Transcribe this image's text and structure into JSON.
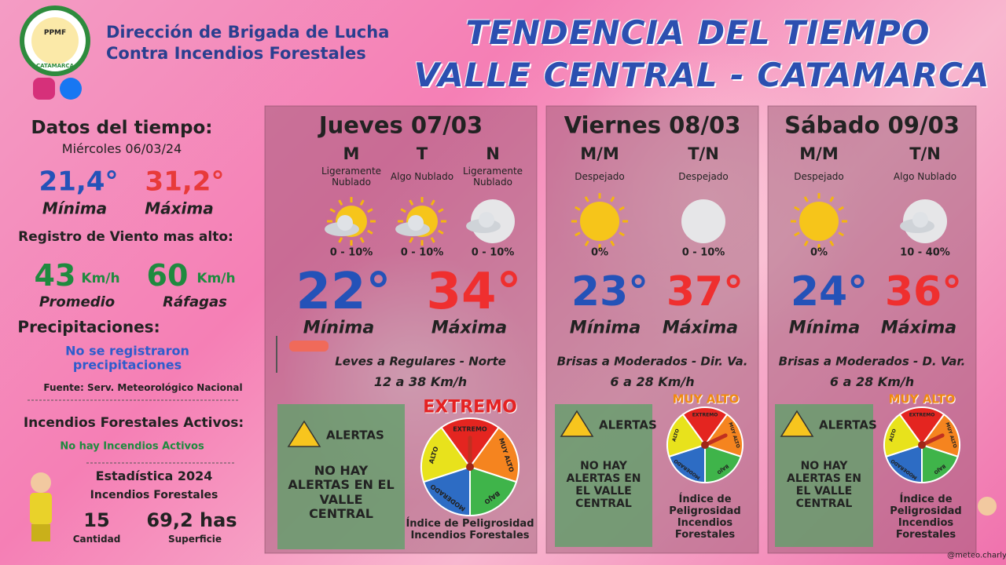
{
  "header": {
    "org_line1": "Dirección de Brigada de Lucha",
    "org_line2": "Contra Incendios Forestales",
    "logo_text": "PPMF",
    "logo_place": "CATAMARCA",
    "title_line1": "TENDENCIA DEL TIEMPO",
    "title_line2": "VALLE CENTRAL - CATAMARCA"
  },
  "summary": {
    "heading": "Datos del tiempo:",
    "date": "Miércoles 06/03/24",
    "min": "21,4°",
    "min_label": "Mínima",
    "max": "31,2°",
    "max_label": "Máxima",
    "wind_heading": "Registro de Viento mas alto:",
    "wind_avg": "43",
    "wind_avg_unit": "Km/h",
    "wind_avg_label": "Promedio",
    "wind_gust": "60",
    "wind_gust_unit": "Km/h",
    "wind_gust_label": "Ráfagas",
    "precip_heading": "Precipitaciones:",
    "precip_text": "No se registraron precipitaciones",
    "source": "Fuente: Serv. Meteorológico Nacional",
    "fires_heading": "Incendios Forestales Activos:",
    "fires_text": "No hay Incendios Activos",
    "stats_heading": "Estadística 2024",
    "stats_sub": "Incendios Forestales",
    "count": "15",
    "count_label": "Cantidad",
    "area": "69,2 has",
    "area_label": "Superficie"
  },
  "days": [
    {
      "name": "Jueves 07/03",
      "periods": [
        {
          "label": "M",
          "sky": "Ligeramente Nublado",
          "precip": "0 - 10%"
        },
        {
          "label": "T",
          "sky": "Algo Nublado",
          "precip": "0 - 10%"
        },
        {
          "label": "N",
          "sky": "Ligeramente Nublado",
          "precip": "0 - 10%"
        }
      ],
      "min": "22°",
      "min_label": "Mínima",
      "max": "34°",
      "max_label": "Máxima",
      "wind": "Leves a Regulares - Norte",
      "wind_speed": "12 a 38 Km/h",
      "alert_title": "ALERTAS",
      "alert_text": "NO HAY ALERTAS EN EL VALLE CENTRAL",
      "danger": "EXTREMO",
      "index_label": "Índice de Peligrosidad Incendios Forestales",
      "gauge_labels": [
        "EXTREMO",
        "MUY ALTO",
        "BAJO",
        "MODERADO",
        "ALTO"
      ]
    },
    {
      "name": "Viernes 08/03",
      "periods": [
        {
          "label": "M/M",
          "sky": "Despejado",
          "precip": "0%"
        },
        {
          "label": "T/N",
          "sky": "Despejado",
          "precip": "0 - 10%"
        }
      ],
      "min": "23°",
      "min_label": "Mínima",
      "max": "37°",
      "max_label": "Máxima",
      "wind": "Brisas a Moderados - Dir. Va.",
      "wind_speed": "6 a 28 Km/h",
      "alert_title": "ALERTAS",
      "alert_text": "NO HAY ALERTAS EN EL VALLE CENTRAL",
      "danger": "MUY ALTO",
      "index_label": "Índice de Peligrosidad Incendios Forestales",
      "gauge_labels": [
        "EXTREMO",
        "MUY ALTO",
        "BAJO",
        "MODERADO",
        "ALTO"
      ]
    },
    {
      "name": "Sábado 09/03",
      "periods": [
        {
          "label": "M/M",
          "sky": "Despejado",
          "precip": "0%"
        },
        {
          "label": "T/N",
          "sky": "Algo Nublado",
          "precip": "10 - 40%"
        }
      ],
      "min": "24°",
      "min_label": "Mínima",
      "max": "36°",
      "max_label": "Máxima",
      "wind": "Brisas a Moderados - D. Var.",
      "wind_speed": "6 a 28 Km/h",
      "alert_title": "ALERTAS",
      "alert_text": "NO HAY ALERTAS EN EL VALLE CENTRAL",
      "danger": "MUY ALTO",
      "index_label": "Índice de Peligrosidad Incendios Forestales",
      "gauge_labels": [
        "EXTREMO",
        "MUY ALTO",
        "BAJO",
        "MODERADO",
        "ALTO"
      ]
    }
  ],
  "footer": {
    "credit": "@meteo.charly"
  }
}
